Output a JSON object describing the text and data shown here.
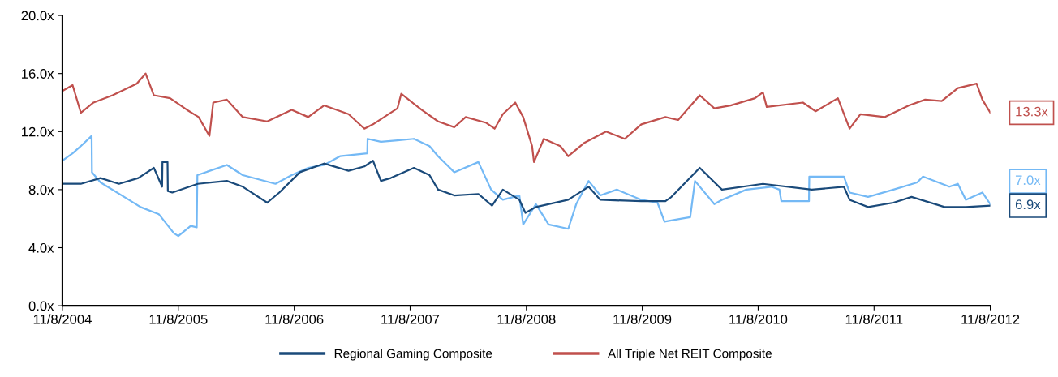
{
  "chart_data": {
    "type": "line",
    "xlim": [
      "2004-11-08",
      "2012-11-08"
    ],
    "xticks": [
      {
        "value": "2004-11-08",
        "label": "11/8/2004"
      },
      {
        "value": "2005-11-08",
        "label": "11/8/2005"
      },
      {
        "value": "2006-11-08",
        "label": "11/8/2006"
      },
      {
        "value": "2007-11-08",
        "label": "11/8/2007"
      },
      {
        "value": "2008-11-08",
        "label": "11/8/2008"
      },
      {
        "value": "2009-11-08",
        "label": "11/8/2009"
      },
      {
        "value": "2010-11-08",
        "label": "11/8/2010"
      },
      {
        "value": "2011-11-08",
        "label": "11/8/2011"
      },
      {
        "value": "2012-11-08",
        "label": "11/8/2012"
      }
    ],
    "ylim": [
      0,
      20
    ],
    "yticks": [
      {
        "value": 0,
        "label": "0.0x"
      },
      {
        "value": 4,
        "label": "4.0x"
      },
      {
        "value": 8,
        "label": "8.0x"
      },
      {
        "value": 12,
        "label": "12.0x"
      },
      {
        "value": 16,
        "label": "16.0x"
      },
      {
        "value": 20,
        "label": "20.0x"
      }
    ],
    "grid": false,
    "legend": "bottom",
    "marker": "none",
    "line_style": "solid",
    "series": [
      {
        "color": "#74b9f5",
        "x": [
          "2004-11-08",
          "2004-12-10",
          "2005-01-05",
          "2005-02-08",
          "2005-02-09",
          "2005-03-08",
          "2005-06-05",
          "2005-07-12",
          "2005-09-08",
          "2005-10-25",
          "2005-11-08",
          "2005-12-17",
          "2006-01-05",
          "2006-01-07",
          "2006-04-10",
          "2006-05-30",
          "2006-09-10",
          "2006-10-31",
          "2006-12-22",
          "2007-02-10",
          "2007-04-01",
          "2007-06-26",
          "2007-06-27",
          "2007-08-08",
          "2007-09-29",
          "2007-11-20",
          "2008-01-08",
          "2008-02-04",
          "2008-03-26",
          "2008-06-10",
          "2008-07-20",
          "2008-08-26",
          "2008-10-17",
          "2008-10-29",
          "2008-12-08",
          "2009-01-17",
          "2009-03-20",
          "2009-04-14",
          "2009-05-23",
          "2009-06-29",
          "2009-08-20",
          "2009-11-05",
          "2009-12-26",
          "2010-01-17",
          "2010-03-12",
          "2010-04-08",
          "2010-04-23",
          "2010-06-23",
          "2010-07-17",
          "2010-10-02",
          "2010-12-20",
          "2011-01-14",
          "2011-01-20",
          "2011-04-17",
          "2011-04-18",
          "2011-08-05",
          "2011-08-23",
          "2011-10-20",
          "2012-01-08",
          "2012-03-23",
          "2012-04-10",
          "2012-07-02",
          "2012-07-29",
          "2012-08-23",
          "2012-10-14",
          "2012-11-08"
        ],
        "values": [
          10.0,
          10.5,
          11.0,
          11.7,
          9.2,
          8.5,
          7.3,
          6.8,
          6.3,
          5.0,
          4.8,
          5.5,
          5.4,
          9.0,
          9.7,
          9.0,
          8.4,
          9.0,
          9.5,
          9.7,
          10.3,
          10.5,
          11.5,
          11.3,
          11.4,
          11.5,
          11.0,
          10.3,
          9.2,
          9.9,
          8.0,
          7.3,
          7.6,
          5.6,
          7.0,
          5.6,
          5.3,
          7.0,
          8.6,
          7.6,
          8.0,
          7.3,
          7.1,
          5.8,
          6.0,
          6.1,
          8.6,
          7.0,
          7.3,
          8.0,
          8.2,
          8.0,
          7.2,
          7.2,
          8.9,
          8.9,
          7.8,
          7.5,
          8.0,
          8.5,
          8.9,
          8.2,
          8.4,
          7.3,
          7.8,
          7.0
        ]
      },
      {
        "name": "Regional Gaming Composite",
        "color": "#1a4a7a",
        "x": [
          "2004-11-08",
          "2005-01-05",
          "2005-03-08",
          "2005-05-05",
          "2005-07-05",
          "2005-08-23",
          "2005-09-18",
          "2005-09-19",
          "2005-10-05",
          "2005-10-06",
          "2005-10-20",
          "2006-01-08",
          "2006-04-10",
          "2006-05-30",
          "2006-08-15",
          "2006-09-22",
          "2006-11-26",
          "2007-02-10",
          "2007-04-28",
          "2007-06-17",
          "2007-07-14",
          "2007-08-08",
          "2007-09-08",
          "2007-11-20",
          "2008-01-08",
          "2008-02-04",
          "2008-03-26",
          "2008-06-10",
          "2008-07-23",
          "2008-08-26",
          "2008-10-17",
          "2008-11-05",
          "2008-12-08",
          "2009-03-20",
          "2009-05-23",
          "2009-06-29",
          "2009-11-05",
          "2010-01-20",
          "2010-02-08",
          "2010-05-08",
          "2010-07-17",
          "2010-11-23",
          "2011-04-26",
          "2011-08-05",
          "2011-08-23",
          "2011-10-20",
          "2012-01-08",
          "2012-03-05",
          "2012-06-17",
          "2012-08-23",
          "2012-11-08"
        ],
        "values": [
          8.4,
          8.4,
          8.8,
          8.4,
          8.8,
          9.5,
          8.2,
          9.9,
          9.9,
          7.9,
          7.8,
          8.4,
          8.6,
          8.2,
          7.1,
          7.8,
          9.2,
          9.8,
          9.3,
          9.6,
          10.0,
          8.6,
          8.8,
          9.5,
          9.0,
          8.0,
          7.6,
          7.7,
          6.9,
          8.0,
          7.3,
          6.4,
          6.8,
          7.3,
          8.2,
          7.3,
          7.2,
          7.2,
          7.5,
          9.5,
          8.0,
          8.4,
          8.0,
          8.2,
          7.3,
          6.8,
          7.1,
          7.5,
          6.8,
          6.8,
          6.9
        ]
      },
      {
        "name": "All Triple Net REIT Composite",
        "color": "#c0504d",
        "x": [
          "2004-11-08",
          "2004-12-10",
          "2005-01-05",
          "2005-02-14",
          "2005-04-15",
          "2005-06-30",
          "2005-07-28",
          "2005-08-23",
          "2005-10-13",
          "2005-12-05",
          "2006-01-11",
          "2006-02-14",
          "2006-02-26",
          "2006-04-10",
          "2006-05-30",
          "2006-08-15",
          "2006-10-31",
          "2006-12-22",
          "2007-02-10",
          "2007-04-28",
          "2007-06-17",
          "2007-07-14",
          "2007-09-29",
          "2007-10-11",
          "2007-12-14",
          "2008-02-04",
          "2008-03-26",
          "2008-05-01",
          "2008-07-05",
          "2008-07-31",
          "2008-08-26",
          "2008-10-04",
          "2008-10-29",
          "2008-11-26",
          "2008-12-02",
          "2009-01-02",
          "2009-02-23",
          "2009-03-20",
          "2009-05-08",
          "2009-07-17",
          "2009-09-14",
          "2009-11-05",
          "2010-01-20",
          "2010-03-01",
          "2010-05-08",
          "2010-06-23",
          "2010-08-13",
          "2010-10-29",
          "2010-11-23",
          "2010-12-05",
          "2011-03-29",
          "2011-05-08",
          "2011-07-17",
          "2011-08-23",
          "2011-09-26",
          "2011-12-11",
          "2012-02-26",
          "2012-04-17",
          "2012-06-08",
          "2012-07-29",
          "2012-09-26",
          "2012-10-14",
          "2012-11-08"
        ],
        "values": [
          14.8,
          15.2,
          13.3,
          14.0,
          14.5,
          15.3,
          16.0,
          14.5,
          14.3,
          13.5,
          13.0,
          11.7,
          14.0,
          14.2,
          13.0,
          12.7,
          13.5,
          13.0,
          13.8,
          13.2,
          12.2,
          12.5,
          13.6,
          14.6,
          13.5,
          12.7,
          12.3,
          13.0,
          12.6,
          12.2,
          13.2,
          14.0,
          13.0,
          11.0,
          9.9,
          11.5,
          11.0,
          10.3,
          11.2,
          12.0,
          11.5,
          12.5,
          13.0,
          12.8,
          14.5,
          13.6,
          13.8,
          14.3,
          14.7,
          13.7,
          14.0,
          13.4,
          14.3,
          12.2,
          13.2,
          13.0,
          13.8,
          14.2,
          14.1,
          15.0,
          15.3,
          14.2,
          13.3
        ]
      }
    ],
    "annotations": [
      {
        "text": "13.3x",
        "x": "2012-11-08",
        "y": 13.3
      },
      {
        "text": "7.0x",
        "x": "2012-11-08",
        "y": 7.0
      },
      {
        "text": "6.9x",
        "x": "2012-11-08",
        "y": 6.9
      }
    ]
  }
}
